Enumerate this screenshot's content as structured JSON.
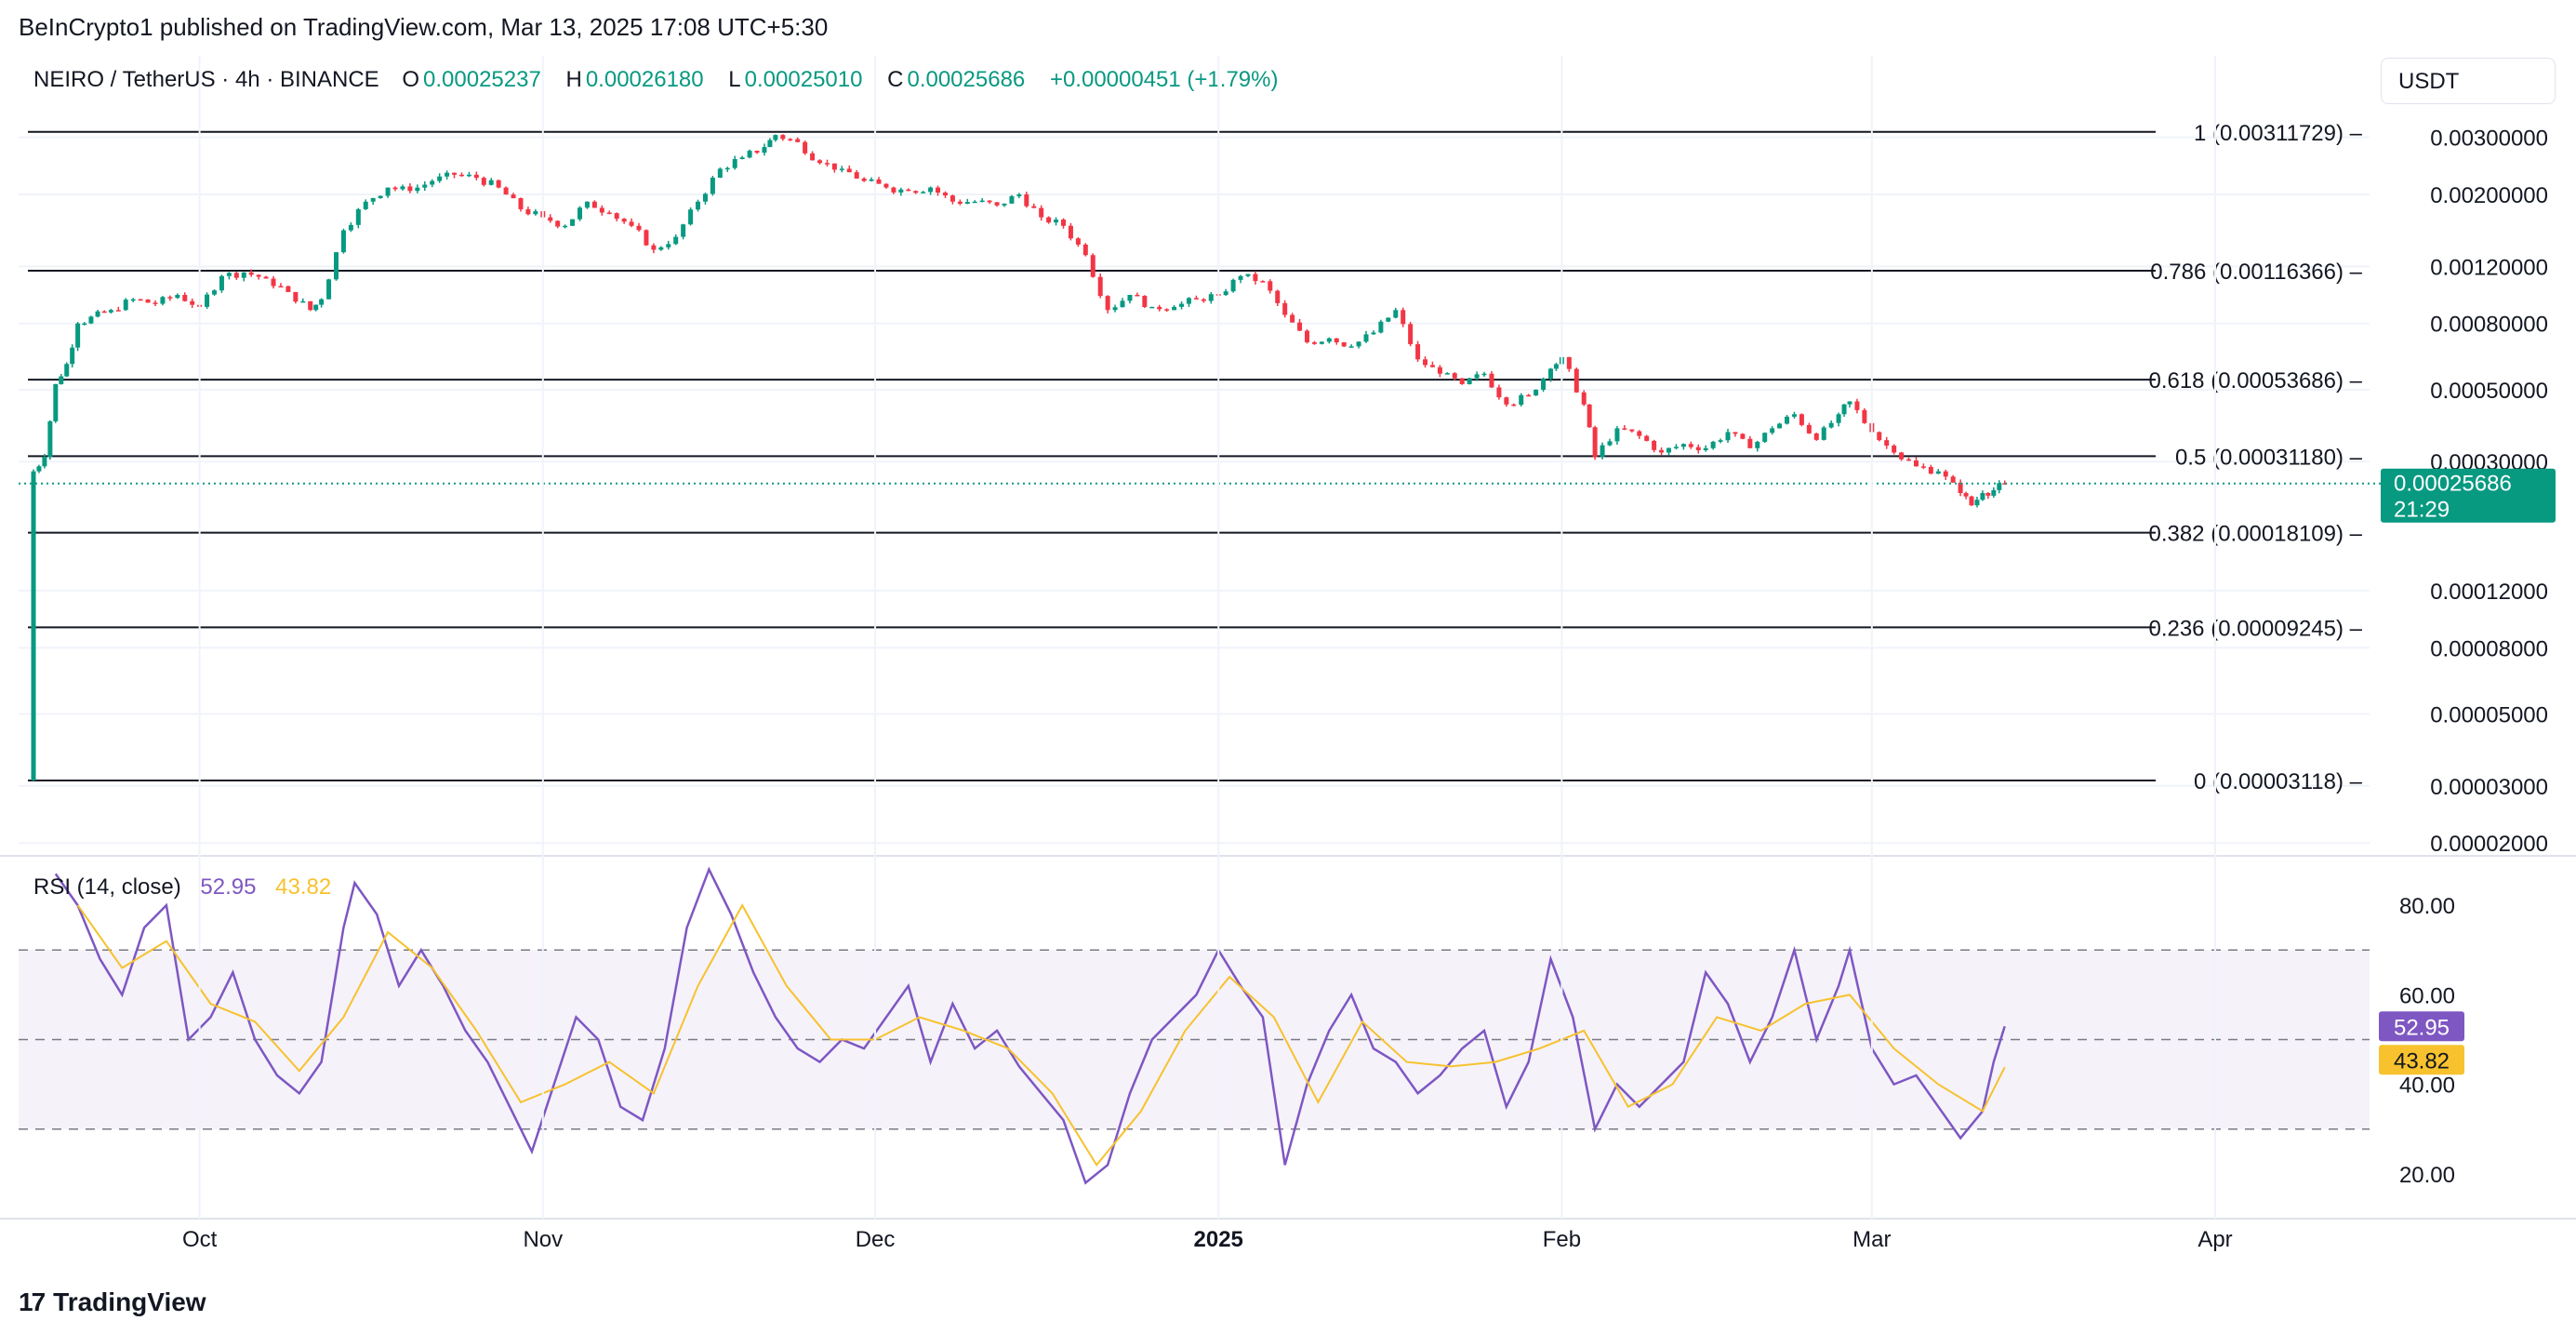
{
  "header": {
    "publisher_line": "BeInCrypto1 published on TradingView.com, Mar 13, 2025 17:08 UTC+5:30"
  },
  "symbol": {
    "name": "NEIRO / TetherUS · 4h · BINANCE",
    "open_label": "O",
    "open": "0.00025237",
    "high_label": "H",
    "high": "0.00026180",
    "low_label": "L",
    "low": "0.00025010",
    "close_label": "C",
    "close": "0.00025686",
    "change": "+0.00000451 (+1.79%)"
  },
  "currency": "USDT",
  "price_badge": {
    "price": "0.00025686",
    "countdown": "21:29",
    "color": "#089981"
  },
  "rsi": {
    "label": "RSI (14, close)",
    "rsi_value": "52.95",
    "ma_value": "43.82",
    "rsi_color": "#7e57c2",
    "ma_color": "#f7c22e"
  },
  "logo": {
    "mark": "17",
    "text": "TradingView"
  },
  "colors": {
    "up": "#089981",
    "down": "#f23645",
    "grid": "#f0f3fa"
  },
  "chart_data": [
    {
      "type": "candlestick",
      "title": "NEIRO / TetherUS · 4h · BINANCE",
      "scale": "log",
      "x_ticks": [
        "Oct",
        "Nov",
        "Dec",
        "2025",
        "Feb",
        "Mar",
        "Apr"
      ],
      "y_ticks": [
        "0.00300000",
        "0.00200000",
        "0.00120000",
        "0.00080000",
        "0.00050000",
        "0.00030000",
        "0.00012000",
        "0.00008000",
        "0.00005000",
        "0.00003000",
        "0.00002000"
      ],
      "ylim": [
        1.85e-05,
        0.0036
      ],
      "fib_levels": [
        {
          "label": "1 (0.00311729)",
          "value": 0.00311729
        },
        {
          "label": "0.786 (0.00116366)",
          "value": 0.00116366
        },
        {
          "label": "0.618 (0.00053686)",
          "value": 0.00053686
        },
        {
          "label": "0.5 (0.00031180)",
          "value": 0.0003118
        },
        {
          "label": "0.382 (0.00018109)",
          "value": 0.00018109
        },
        {
          "label": "0.236 (0.00009245)",
          "value": 9.245e-05
        },
        {
          "label": "0 (0.00003118)",
          "value": 3.118e-05
        }
      ],
      "last_price": 0.00025686,
      "price_path": [
        [
          "2024-09-16",
          3.118e-05
        ],
        [
          "2024-09-16",
          0.00028
        ],
        [
          "2024-09-17",
          0.00031
        ],
        [
          "2024-09-18",
          0.00052
        ],
        [
          "2024-09-19",
          0.0006
        ],
        [
          "2024-09-20",
          0.0008
        ],
        [
          "2024-09-23",
          0.00088
        ],
        [
          "2024-09-25",
          0.00095
        ],
        [
          "2024-09-27",
          0.00092
        ],
        [
          "2024-09-29",
          0.00098
        ],
        [
          "2024-10-01",
          0.0009
        ],
        [
          "2024-10-03",
          0.00112
        ],
        [
          "2024-10-05",
          0.00115
        ],
        [
          "2024-10-07",
          0.0011
        ],
        [
          "2024-10-09",
          0.001
        ],
        [
          "2024-10-11",
          0.00088
        ],
        [
          "2024-10-12",
          0.00095
        ],
        [
          "2024-10-14",
          0.00155
        ],
        [
          "2024-10-16",
          0.0019
        ],
        [
          "2024-10-18",
          0.0021
        ],
        [
          "2024-10-20",
          0.00205
        ],
        [
          "2024-10-22",
          0.0022
        ],
        [
          "2024-10-24",
          0.0023
        ],
        [
          "2024-10-26",
          0.00225
        ],
        [
          "2024-10-28",
          0.0021
        ],
        [
          "2024-10-30",
          0.0018
        ],
        [
          "2024-11-01",
          0.0017
        ],
        [
          "2024-11-03",
          0.0016
        ],
        [
          "2024-11-05",
          0.0019
        ],
        [
          "2024-11-07",
          0.00175
        ],
        [
          "2024-11-09",
          0.0016
        ],
        [
          "2024-11-11",
          0.00135
        ],
        [
          "2024-11-13",
          0.00148
        ],
        [
          "2024-11-15",
          0.0019
        ],
        [
          "2024-11-17",
          0.0024
        ],
        [
          "2024-11-19",
          0.0026
        ],
        [
          "2024-11-21",
          0.0028
        ],
        [
          "2024-11-22",
          0.00305
        ],
        [
          "2024-11-24",
          0.0029
        ],
        [
          "2024-11-26",
          0.0025
        ],
        [
          "2024-11-28",
          0.0024
        ],
        [
          "2024-11-30",
          0.0022
        ],
        [
          "2024-12-02",
          0.0021
        ],
        [
          "2024-12-04",
          0.00205
        ],
        [
          "2024-12-06",
          0.0021
        ],
        [
          "2024-12-08",
          0.0019
        ],
        [
          "2024-12-10",
          0.0019
        ],
        [
          "2024-12-12",
          0.00185
        ],
        [
          "2024-12-14",
          0.002
        ],
        [
          "2024-12-16",
          0.0017
        ],
        [
          "2024-12-18",
          0.0016
        ],
        [
          "2024-12-20",
          0.0013
        ],
        [
          "2024-12-22",
          0.00088
        ],
        [
          "2024-12-24",
          0.00098
        ],
        [
          "2024-12-26",
          0.0009
        ],
        [
          "2024-12-28",
          0.0009
        ],
        [
          "2024-12-30",
          0.00095
        ],
        [
          "2025-01-01",
          0.00098
        ],
        [
          "2025-01-03",
          0.00112
        ],
        [
          "2025-01-05",
          0.00108
        ],
        [
          "2025-01-07",
          0.00085
        ],
        [
          "2025-01-09",
          0.0007
        ],
        [
          "2025-01-11",
          0.00072
        ],
        [
          "2025-01-13",
          0.00068
        ],
        [
          "2025-01-15",
          0.00075
        ],
        [
          "2025-01-17",
          0.00088
        ],
        [
          "2025-01-19",
          0.00062
        ],
        [
          "2025-01-21",
          0.00056
        ],
        [
          "2025-01-23",
          0.00052
        ],
        [
          "2025-01-25",
          0.00056
        ],
        [
          "2025-01-27",
          0.00045
        ],
        [
          "2025-01-29",
          0.00048
        ],
        [
          "2025-01-31",
          0.00058
        ],
        [
          "2025-02-01",
          0.00063
        ],
        [
          "2025-02-03",
          0.00045
        ],
        [
          "2025-02-04",
          0.00031
        ],
        [
          "2025-02-06",
          0.00038
        ],
        [
          "2025-02-08",
          0.00036
        ],
        [
          "2025-02-10",
          0.00032
        ],
        [
          "2025-02-12",
          0.00034
        ],
        [
          "2025-02-14",
          0.00033
        ],
        [
          "2025-02-16",
          0.00037
        ],
        [
          "2025-02-18",
          0.00033
        ],
        [
          "2025-02-20",
          0.00038
        ],
        [
          "2025-02-22",
          0.00042
        ],
        [
          "2025-02-24",
          0.00035
        ],
        [
          "2025-02-26",
          0.00042
        ],
        [
          "2025-02-27",
          0.00046
        ],
        [
          "2025-03-01",
          0.00037
        ],
        [
          "2025-03-03",
          0.00032
        ],
        [
          "2025-03-05",
          0.00029
        ],
        [
          "2025-03-07",
          0.00028
        ],
        [
          "2025-03-09",
          0.00024
        ],
        [
          "2025-03-10",
          0.00022
        ],
        [
          "2025-03-11",
          0.00024
        ],
        [
          "2025-03-12",
          0.000245
        ],
        [
          "2025-03-13",
          0.00025686
        ]
      ]
    },
    {
      "type": "line",
      "title": "RSI (14, close)",
      "x_ticks": [
        "Oct",
        "Nov",
        "Dec",
        "2025",
        "Feb",
        "Mar",
        "Apr"
      ],
      "y_ticks": [
        "80.00",
        "60.00",
        "40.00",
        "20.00"
      ],
      "bands": {
        "upper": 70,
        "middle": 50,
        "lower": 30
      },
      "ylim": [
        10,
        90
      ],
      "series": [
        {
          "name": "RSI",
          "last": 52.95,
          "values": [
            [
              "2024-09-18",
              87
            ],
            [
              "2024-09-20",
              80
            ],
            [
              "2024-09-22",
              68
            ],
            [
              "2024-09-24",
              60
            ],
            [
              "2024-09-26",
              75
            ],
            [
              "2024-09-28",
              80
            ],
            [
              "2024-09-30",
              50
            ],
            [
              "2024-10-02",
              55
            ],
            [
              "2024-10-04",
              65
            ],
            [
              "2024-10-06",
              50
            ],
            [
              "2024-10-08",
              42
            ],
            [
              "2024-10-10",
              38
            ],
            [
              "2024-10-12",
              45
            ],
            [
              "2024-10-14",
              75
            ],
            [
              "2024-10-15",
              85
            ],
            [
              "2024-10-17",
              78
            ],
            [
              "2024-10-19",
              62
            ],
            [
              "2024-10-21",
              70
            ],
            [
              "2024-10-23",
              62
            ],
            [
              "2024-10-25",
              52
            ],
            [
              "2024-10-27",
              45
            ],
            [
              "2024-10-29",
              35
            ],
            [
              "2024-10-31",
              25
            ],
            [
              "2024-11-02",
              40
            ],
            [
              "2024-11-04",
              55
            ],
            [
              "2024-11-06",
              50
            ],
            [
              "2024-11-08",
              35
            ],
            [
              "2024-11-10",
              32
            ],
            [
              "2024-11-12",
              48
            ],
            [
              "2024-11-14",
              75
            ],
            [
              "2024-11-16",
              88
            ],
            [
              "2024-11-18",
              78
            ],
            [
              "2024-11-20",
              65
            ],
            [
              "2024-11-22",
              55
            ],
            [
              "2024-11-24",
              48
            ],
            [
              "2024-11-26",
              45
            ],
            [
              "2024-11-28",
              50
            ],
            [
              "2024-11-30",
              48
            ],
            [
              "2024-12-02",
              55
            ],
            [
              "2024-12-04",
              62
            ],
            [
              "2024-12-06",
              45
            ],
            [
              "2024-12-08",
              58
            ],
            [
              "2024-12-10",
              48
            ],
            [
              "2024-12-12",
              52
            ],
            [
              "2024-12-14",
              44
            ],
            [
              "2024-12-16",
              38
            ],
            [
              "2024-12-18",
              32
            ],
            [
              "2024-12-20",
              18
            ],
            [
              "2024-12-22",
              22
            ],
            [
              "2024-12-24",
              38
            ],
            [
              "2024-12-26",
              50
            ],
            [
              "2024-12-28",
              55
            ],
            [
              "2024-12-30",
              60
            ],
            [
              "2025-01-01",
              70
            ],
            [
              "2025-01-03",
              62
            ],
            [
              "2025-01-05",
              55
            ],
            [
              "2025-01-07",
              22
            ],
            [
              "2025-01-09",
              40
            ],
            [
              "2025-01-11",
              52
            ],
            [
              "2025-01-13",
              60
            ],
            [
              "2025-01-15",
              48
            ],
            [
              "2025-01-17",
              45
            ],
            [
              "2025-01-19",
              38
            ],
            [
              "2025-01-21",
              42
            ],
            [
              "2025-01-23",
              48
            ],
            [
              "2025-01-25",
              52
            ],
            [
              "2025-01-27",
              35
            ],
            [
              "2025-01-29",
              45
            ],
            [
              "2025-01-31",
              68
            ],
            [
              "2025-02-02",
              55
            ],
            [
              "2025-02-04",
              30
            ],
            [
              "2025-02-06",
              40
            ],
            [
              "2025-02-08",
              35
            ],
            [
              "2025-02-10",
              40
            ],
            [
              "2025-02-12",
              45
            ],
            [
              "2025-02-14",
              65
            ],
            [
              "2025-02-16",
              58
            ],
            [
              "2025-02-18",
              45
            ],
            [
              "2025-02-20",
              55
            ],
            [
              "2025-02-22",
              70
            ],
            [
              "2025-02-24",
              50
            ],
            [
              "2025-02-26",
              62
            ],
            [
              "2025-02-27",
              70
            ],
            [
              "2025-03-01",
              48
            ],
            [
              "2025-03-03",
              40
            ],
            [
              "2025-03-05",
              42
            ],
            [
              "2025-03-07",
              35
            ],
            [
              "2025-03-09",
              28
            ],
            [
              "2025-03-11",
              34
            ],
            [
              "2025-03-12",
              45
            ],
            [
              "2025-03-13",
              52.95
            ]
          ]
        },
        {
          "name": "RSI-based MA",
          "last": 43.82,
          "values": [
            [
              "2024-09-20",
              80
            ],
            [
              "2024-09-24",
              66
            ],
            [
              "2024-09-28",
              72
            ],
            [
              "2024-10-02",
              58
            ],
            [
              "2024-10-06",
              54
            ],
            [
              "2024-10-10",
              43
            ],
            [
              "2024-10-14",
              55
            ],
            [
              "2024-10-18",
              74
            ],
            [
              "2024-10-22",
              66
            ],
            [
              "2024-10-26",
              52
            ],
            [
              "2024-10-30",
              36
            ],
            [
              "2024-11-03",
              40
            ],
            [
              "2024-11-07",
              45
            ],
            [
              "2024-11-11",
              38
            ],
            [
              "2024-11-15",
              62
            ],
            [
              "2024-11-19",
              80
            ],
            [
              "2024-11-23",
              62
            ],
            [
              "2024-11-27",
              50
            ],
            [
              "2024-12-01",
              50
            ],
            [
              "2024-12-05",
              55
            ],
            [
              "2024-12-09",
              52
            ],
            [
              "2024-12-13",
              48
            ],
            [
              "2024-12-17",
              38
            ],
            [
              "2024-12-21",
              22
            ],
            [
              "2024-12-25",
              34
            ],
            [
              "2024-12-29",
              52
            ],
            [
              "2025-01-02",
              64
            ],
            [
              "2025-01-06",
              55
            ],
            [
              "2025-01-10",
              36
            ],
            [
              "2025-01-14",
              54
            ],
            [
              "2025-01-18",
              45
            ],
            [
              "2025-01-22",
              44
            ],
            [
              "2025-01-26",
              45
            ],
            [
              "2025-01-30",
              48
            ],
            [
              "2025-02-03",
              52
            ],
            [
              "2025-02-07",
              35
            ],
            [
              "2025-02-11",
              40
            ],
            [
              "2025-02-15",
              55
            ],
            [
              "2025-02-19",
              52
            ],
            [
              "2025-02-23",
              58
            ],
            [
              "2025-02-27",
              60
            ],
            [
              "2025-03-03",
              48
            ],
            [
              "2025-03-07",
              40
            ],
            [
              "2025-03-11",
              34
            ],
            [
              "2025-03-13",
              43.82
            ]
          ]
        }
      ]
    }
  ]
}
